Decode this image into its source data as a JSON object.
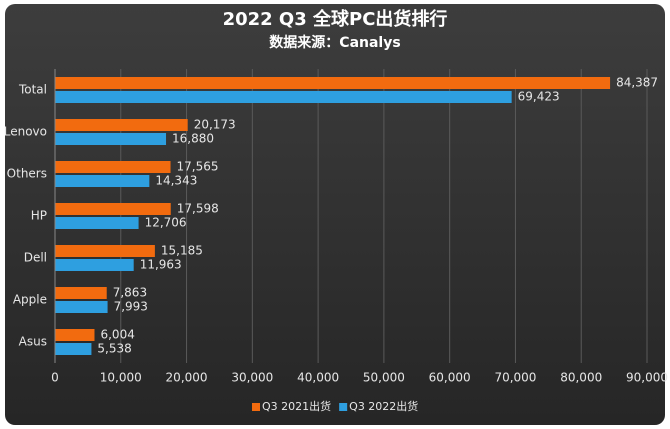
{
  "chart_data": {
    "type": "hbar",
    "title": "2022 Q3 全球PC出货排行",
    "subtitle": "数据来源：Canalys",
    "categories": [
      "Total",
      "Lenovo",
      "Others",
      "HP",
      "Dell",
      "Apple",
      "Asus"
    ],
    "series": [
      {
        "name": "Q3 2021出货",
        "color": "#f26b0f",
        "values": [
          84387,
          20173,
          17565,
          17598,
          15185,
          7863,
          6004
        ],
        "value_labels": [
          "84,387",
          "20,173",
          "17,565",
          "17,598",
          "15,185",
          "7,863",
          "6,004"
        ]
      },
      {
        "name": "Q3 2022出货",
        "color": "#2e9fe0",
        "values": [
          69423,
          16880,
          14343,
          12706,
          11963,
          7993,
          5538
        ],
        "value_labels": [
          "69,423",
          "16,880",
          "14,343",
          "12,706",
          "11,963",
          "7,993",
          "5,538"
        ]
      }
    ],
    "xlim": [
      0,
      90000
    ],
    "xticks": [
      0,
      {
        "value": 10000,
        "label": "10,000"
      },
      {
        "value": 20000,
        "label": "20,000"
      },
      {
        "value": 30000,
        "label": "30,000"
      },
      {
        "value": 40000,
        "label": "40,000"
      },
      {
        "value": 50000,
        "label": "50,000"
      },
      {
        "value": 60000,
        "label": "60,000"
      },
      {
        "value": 70000,
        "label": "70,000"
      },
      {
        "value": 80000,
        "label": "80,000"
      },
      {
        "value": 90000,
        "label": "90,000"
      }
    ],
    "grid": true,
    "legend": "bottom"
  }
}
